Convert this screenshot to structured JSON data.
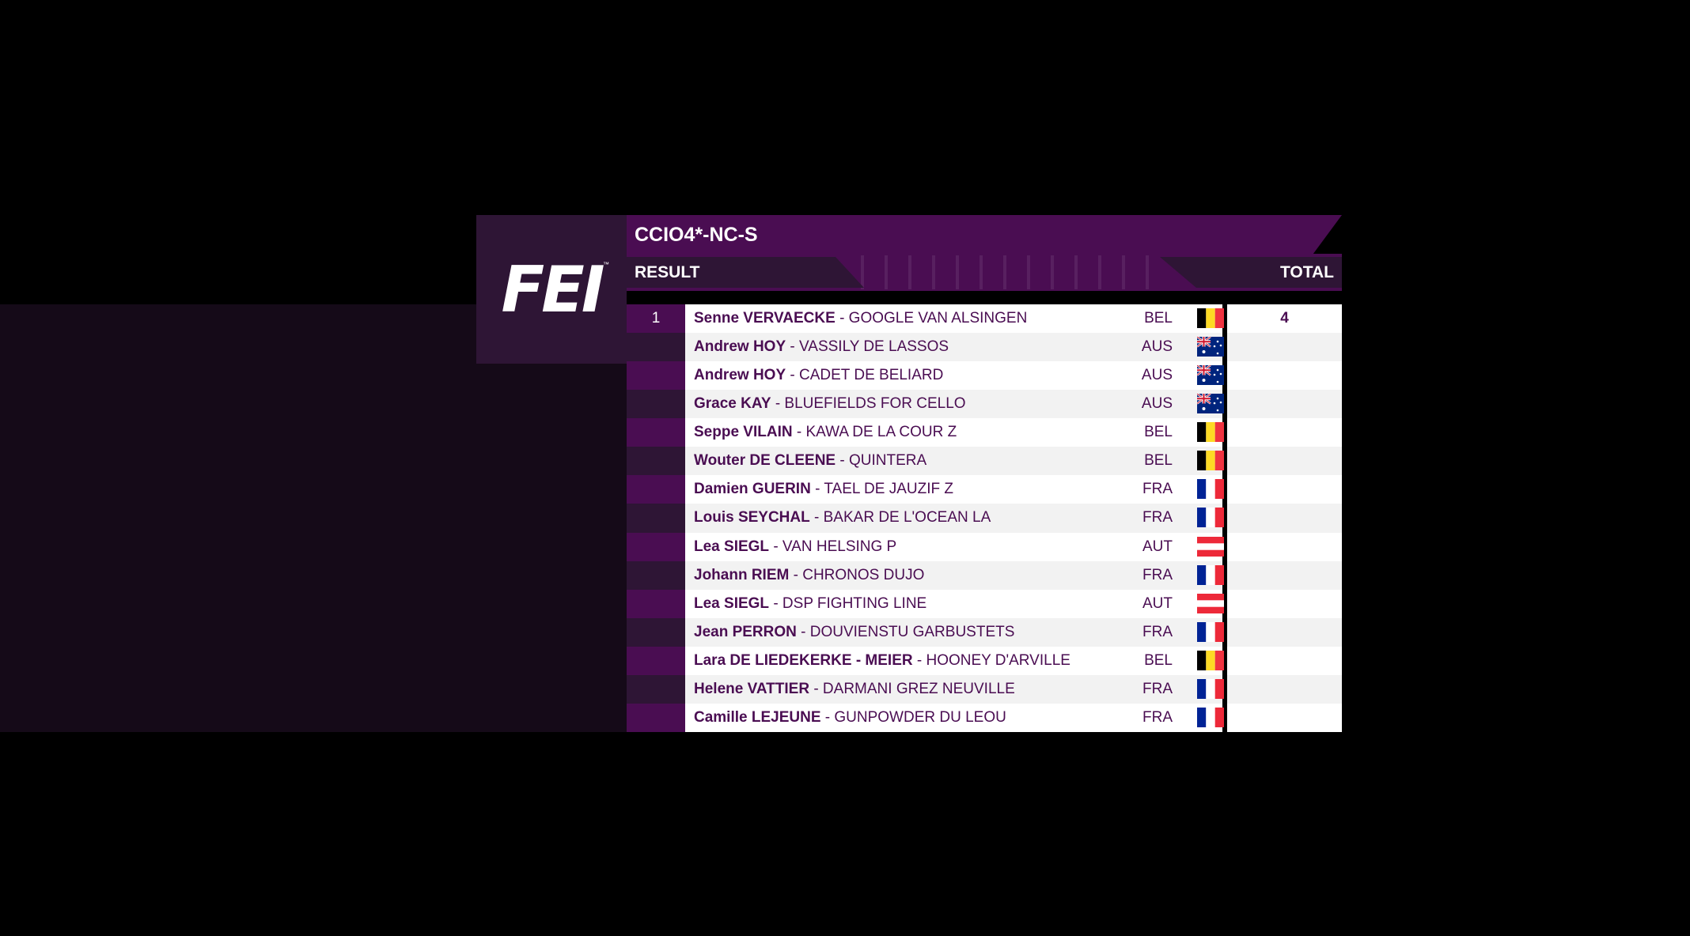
{
  "logo": {
    "text": "FEI",
    "tm": "™"
  },
  "header": {
    "title": "CCIO4*-NC-S",
    "result_label": "RESULT",
    "total_label": "TOTAL"
  },
  "colors": {
    "brand_purple": "#4a0d52",
    "dark_purple": "#2e1535"
  },
  "rows": [
    {
      "rank": "1",
      "rider": "Senne VERVAECKE",
      "horse": "- GOOGLE VAN ALSINGEN",
      "nation": "BEL",
      "flag": "belgium-flag",
      "total": "4"
    },
    {
      "rank": "",
      "rider": "Andrew HOY",
      "horse": "- VASSILY DE LASSOS",
      "nation": "AUS",
      "flag": "australia-flag",
      "total": ""
    },
    {
      "rank": "",
      "rider": "Andrew HOY",
      "horse": "- CADET DE BELIARD",
      "nation": "AUS",
      "flag": "australia-flag",
      "total": ""
    },
    {
      "rank": "",
      "rider": "Grace KAY",
      "horse": "- BLUEFIELDS FOR CELLO",
      "nation": "AUS",
      "flag": "australia-flag",
      "total": ""
    },
    {
      "rank": "",
      "rider": "Seppe VILAIN",
      "horse": "- KAWA DE LA COUR Z",
      "nation": "BEL",
      "flag": "belgium-flag",
      "total": ""
    },
    {
      "rank": "",
      "rider": "Wouter DE CLEENE",
      "horse": "- QUINTERA",
      "nation": "BEL",
      "flag": "belgium-flag",
      "total": ""
    },
    {
      "rank": "",
      "rider": "Damien GUERIN",
      "horse": "- TAEL DE JAUZIF Z",
      "nation": "FRA",
      "flag": "france-flag",
      "total": ""
    },
    {
      "rank": "",
      "rider": "Louis SEYCHAL",
      "horse": "- BAKAR DE L'OCEAN LA",
      "nation": "FRA",
      "flag": "france-flag",
      "total": ""
    },
    {
      "rank": "",
      "rider": "Lea SIEGL",
      "horse": "- VAN HELSING P",
      "nation": "AUT",
      "flag": "austria-flag",
      "total": ""
    },
    {
      "rank": "",
      "rider": "Johann RIEM",
      "horse": "- CHRONOS DUJO",
      "nation": "FRA",
      "flag": "france-flag",
      "total": ""
    },
    {
      "rank": "",
      "rider": "Lea SIEGL",
      "horse": "- DSP FIGHTING LINE",
      "nation": "AUT",
      "flag": "austria-flag",
      "total": ""
    },
    {
      "rank": "",
      "rider": "Jean PERRON",
      "horse": "- DOUVIENSTU GARBUSTETS",
      "nation": "FRA",
      "flag": "france-flag",
      "total": ""
    },
    {
      "rank": "",
      "rider": "Lara DE LIEDEKERKE - MEIER",
      "horse": "- HOONEY D'ARVILLE",
      "nation": "BEL",
      "flag": "belgium-flag",
      "total": ""
    },
    {
      "rank": "",
      "rider": "Helene VATTIER",
      "horse": "- DARMANI GREZ NEUVILLE",
      "nation": "FRA",
      "flag": "france-flag",
      "total": ""
    },
    {
      "rank": "",
      "rider": "Camille LEJEUNE",
      "horse": "- GUNPOWDER DU LEOU",
      "nation": "FRA",
      "flag": "france-flag",
      "total": ""
    }
  ]
}
